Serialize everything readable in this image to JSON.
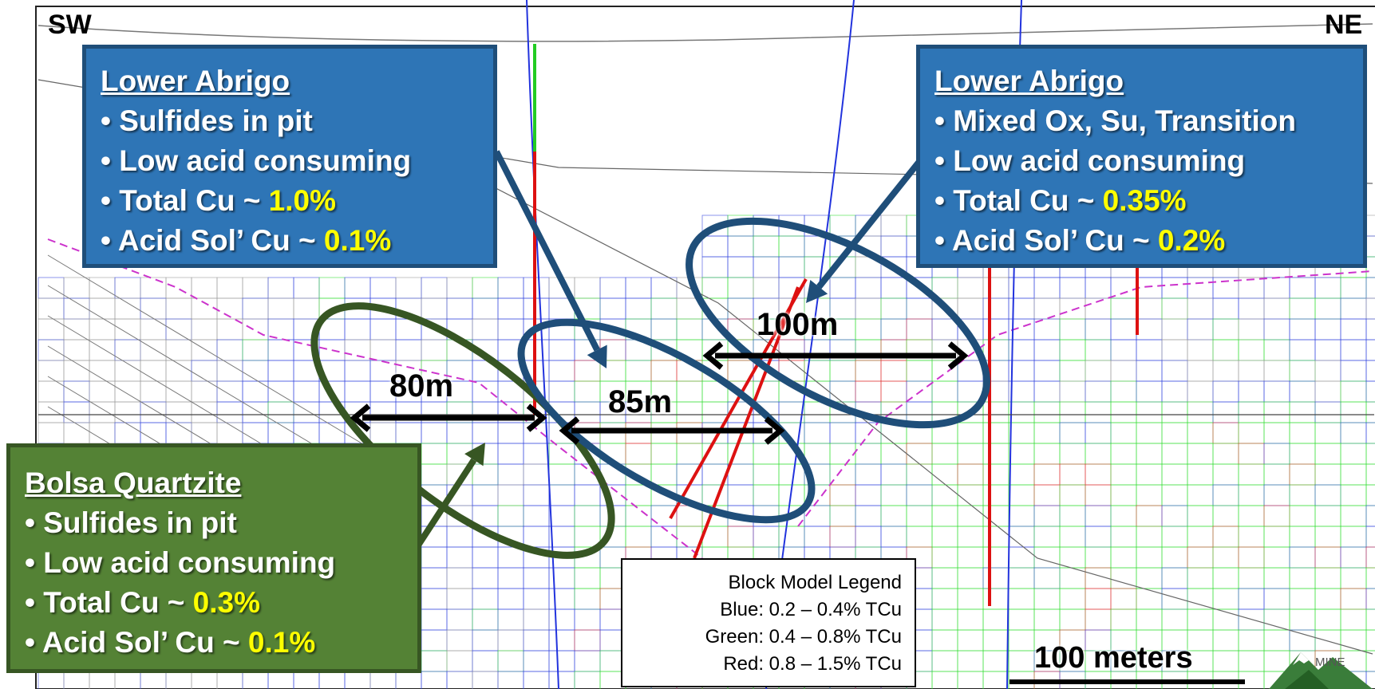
{
  "orientation": {
    "left": "SW",
    "right": "NE"
  },
  "callouts": {
    "lower_abrigo_sw": {
      "title": "Lower Abrigo",
      "bullets": [
        {
          "text": "• Sulfides in pit",
          "highlight": ""
        },
        {
          "text": "• Low acid consuming",
          "highlight": ""
        },
        {
          "text": "• Total Cu ~ ",
          "highlight": "1.0%"
        },
        {
          "text": "• Acid Sol’ Cu ~ ",
          "highlight": "0.1%"
        }
      ]
    },
    "lower_abrigo_ne": {
      "title": "Lower Abrigo",
      "bullets": [
        {
          "text": "• Mixed Ox, Su, Transition",
          "highlight": ""
        },
        {
          "text": "• Low acid consuming",
          "highlight": ""
        },
        {
          "text": "• Total Cu ~ ",
          "highlight": "0.35%"
        },
        {
          "text": "• Acid Sol’ Cu ~ ",
          "highlight": "0.2%"
        }
      ]
    },
    "bolsa_quartzite": {
      "title": "Bolsa Quartzite",
      "bullets": [
        {
          "text": "• Sulfides in pit",
          "highlight": ""
        },
        {
          "text": "• Low acid consuming",
          "highlight": ""
        },
        {
          "text": "• Total Cu ~ ",
          "highlight": "0.3%"
        },
        {
          "text": "• Acid Sol’ Cu ~ ",
          "highlight": "0.1%"
        }
      ]
    }
  },
  "distances": {
    "d80": "80m",
    "d85": "85m",
    "d100": "100m"
  },
  "legend": {
    "title": "Block Model Legend",
    "items": [
      "Blue: 0.2 – 0.4% TCu",
      "Green: 0.4 – 0.8% TCu",
      "Red: 0.8 – 1.5% TCu"
    ]
  },
  "scale_bar": {
    "label": "100 meters"
  },
  "logo": {
    "text": "MINE"
  },
  "colors": {
    "blue_callout": "#2e75b6",
    "green_callout": "#548235",
    "highlight": "#ffff00",
    "ellipse_blue": "#1f4e79",
    "ellipse_green": "#375623",
    "block_blue": "#3344dd",
    "block_green": "#33dd33",
    "block_red": "#dd3333"
  }
}
